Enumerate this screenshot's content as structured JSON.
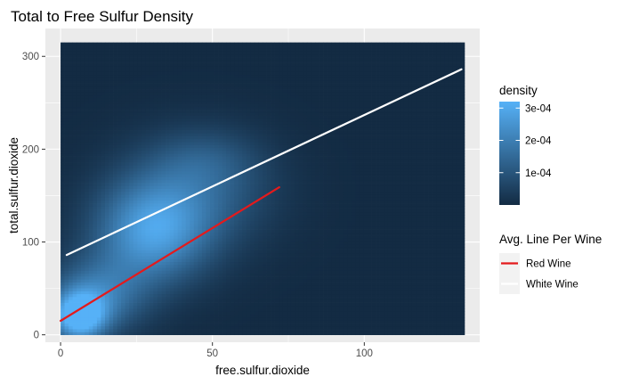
{
  "chart_data": {
    "type": "heatmap",
    "title": "Total to Free Sulfur Density",
    "xlabel": "free.sulfur.dioxide",
    "ylabel": "total.sulfur.dioxide",
    "xlim": [
      -5,
      138
    ],
    "ylim": [
      -8,
      330
    ],
    "x_ticks": [
      0,
      50,
      100
    ],
    "y_ticks": [
      0,
      100,
      200,
      300
    ],
    "x_tick_labels": [
      "0",
      "50",
      "100"
    ],
    "y_tick_labels": [
      "0",
      "100",
      "200",
      "300"
    ],
    "grid": true,
    "density_tile_extent": {
      "x": [
        0,
        133
      ],
      "y": [
        0,
        315
      ]
    },
    "density_fill": {
      "name": "density",
      "scale": "gradient",
      "low_color": "#132b43",
      "high_color": "#56b1f7",
      "range": [
        0,
        0.00032
      ],
      "breaks": [
        0.0001,
        0.0002,
        0.0003
      ],
      "break_labels": [
        "1e-04",
        "2e-04",
        "3e-04"
      ]
    },
    "density_components": [
      {
        "x": 6,
        "y": 20,
        "sx": 6,
        "sy": 18,
        "peak": 0.00033
      },
      {
        "x": 12,
        "y": 42,
        "sx": 11,
        "sy": 28,
        "peak": 0.00018
      },
      {
        "x": 30,
        "y": 110,
        "sx": 13,
        "sy": 38,
        "peak": 0.00025
      },
      {
        "x": 45,
        "y": 155,
        "sx": 17,
        "sy": 42,
        "peak": 0.00012
      },
      {
        "x": 48,
        "y": 190,
        "sx": 12,
        "sy": 22,
        "peak": 5e-05
      }
    ],
    "series": [
      {
        "name": "Red Wine",
        "color": "#e41a1c",
        "x": [
          0,
          72
        ],
        "y": [
          15,
          159
        ]
      },
      {
        "name": "White Wine",
        "color": "#ffffff",
        "x": [
          2,
          132
        ],
        "y": [
          86,
          286
        ]
      }
    ],
    "legend_title": "Avg. Line Per Wine",
    "legend_position": "right"
  }
}
